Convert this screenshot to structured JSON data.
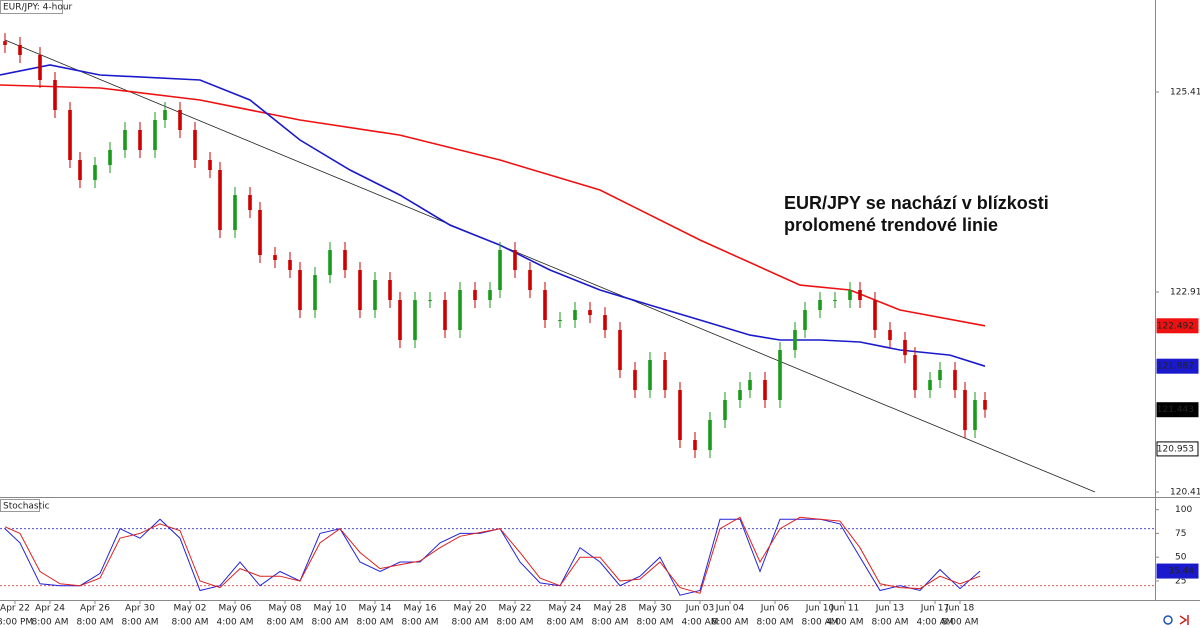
{
  "chart_data": [
    {
      "type": "candlestick",
      "title": "EUR/JPY: 4-hour",
      "annotation": [
        "EUR/JPY se nachází v blízkosti",
        "prolomené trendové linie"
      ],
      "x": [
        1,
        4,
        8,
        11,
        14,
        16,
        19,
        22,
        25,
        28,
        31,
        33,
        36,
        39,
        42,
        44,
        47,
        50,
        52,
        55,
        58,
        60,
        63,
        66,
        69,
        72,
        75,
        78,
        80,
        83,
        86,
        89,
        92,
        95,
        98,
        100,
        103,
        106,
        109,
        112,
        115,
        118,
        121,
        124,
        127,
        130,
        133,
        136,
        139,
        142,
        145,
        148,
        150,
        153,
        156,
        159,
        161,
        164,
        167,
        170,
        172,
        175,
        178,
        181,
        183,
        186,
        188,
        191,
        193,
        195,
        197
      ],
      "open": [
        126.05,
        126.002,
        125.877,
        125.564,
        125.189,
        124.564,
        124.314,
        124.501,
        124.689,
        124.939,
        124.689,
        125.064,
        125.189,
        124.939,
        124.564,
        124.439,
        123.689,
        124.126,
        123.939,
        123.376,
        123.314,
        123.189,
        122.689,
        123.126,
        123.439,
        123.189,
        122.689,
        123.064,
        122.814,
        122.314,
        122.814,
        122.814,
        122.439,
        122.939,
        122.814,
        122.939,
        123.439,
        123.189,
        122.939,
        122.564,
        122.564,
        122.689,
        122.626,
        122.439,
        121.939,
        121.689,
        122.064,
        121.689,
        121.064,
        120.939,
        121.314,
        121.564,
        121.689,
        121.814,
        121.564,
        122.189,
        122.439,
        122.689,
        122.814,
        122.814,
        122.939,
        122.814,
        122.439,
        122.314,
        122.126,
        121.689,
        121.814,
        121.939,
        121.689,
        121.189,
        121.564
      ],
      "high": [
        126.15,
        126.102,
        125.977,
        125.664,
        125.289,
        124.664,
        124.601,
        124.789,
        125.039,
        125.039,
        125.164,
        125.289,
        125.289,
        125.039,
        124.664,
        124.539,
        124.226,
        124.226,
        124.039,
        123.476,
        123.414,
        123.289,
        123.226,
        123.539,
        123.539,
        123.289,
        123.164,
        123.164,
        122.914,
        122.914,
        122.914,
        122.914,
        123.039,
        123.039,
        123.039,
        123.539,
        123.539,
        123.289,
        123.039,
        122.664,
        122.789,
        122.789,
        122.726,
        122.539,
        122.039,
        122.164,
        122.164,
        121.789,
        121.164,
        121.414,
        121.664,
        121.789,
        121.914,
        121.914,
        122.289,
        122.539,
        122.789,
        122.914,
        122.914,
        123.039,
        123.039,
        122.914,
        122.539,
        122.414,
        122.226,
        121.914,
        122.039,
        122.039,
        121.789,
        121.664,
        121.664
      ],
      "low": [
        125.902,
        125.777,
        125.464,
        125.089,
        124.464,
        124.214,
        124.214,
        124.401,
        124.589,
        124.589,
        124.589,
        124.964,
        124.839,
        124.464,
        124.339,
        123.589,
        123.589,
        123.839,
        123.276,
        123.214,
        123.089,
        122.589,
        122.589,
        123.026,
        123.089,
        122.589,
        122.589,
        122.714,
        122.214,
        122.214,
        122.714,
        122.339,
        122.339,
        122.714,
        122.714,
        122.839,
        123.089,
        122.839,
        122.464,
        122.464,
        122.464,
        122.526,
        122.339,
        121.839,
        121.589,
        121.589,
        121.589,
        120.964,
        120.839,
        120.839,
        121.214,
        121.464,
        121.589,
        121.464,
        121.464,
        122.089,
        122.339,
        122.589,
        122.714,
        122.714,
        122.714,
        122.339,
        122.214,
        122.026,
        121.589,
        121.589,
        121.714,
        121.589,
        121.089,
        121.089,
        121.343
      ],
      "close": [
        126.002,
        125.877,
        125.564,
        125.189,
        124.564,
        124.314,
        124.501,
        124.689,
        124.939,
        124.689,
        125.064,
        125.189,
        124.939,
        124.564,
        124.439,
        123.689,
        124.126,
        123.939,
        123.376,
        123.314,
        123.189,
        122.689,
        123.126,
        123.439,
        123.189,
        122.689,
        123.064,
        122.814,
        122.314,
        122.814,
        122.814,
        122.439,
        122.939,
        122.814,
        122.939,
        123.439,
        123.189,
        122.939,
        122.564,
        122.564,
        122.689,
        122.626,
        122.439,
        121.939,
        121.689,
        122.064,
        121.689,
        121.064,
        120.939,
        121.314,
        121.564,
        121.689,
        121.814,
        121.564,
        122.189,
        122.439,
        122.689,
        122.814,
        122.814,
        122.939,
        122.814,
        122.439,
        122.314,
        122.126,
        121.689,
        121.814,
        121.939,
        121.689,
        121.189,
        121.564,
        121.443
      ],
      "up_color": "#1a9a1a",
      "down_color": "#cc0000",
      "xlim": [
        0,
        231
      ],
      "ylim": [
        120.377,
        126.564
      ],
      "yticks": [
        125.414,
        122.914,
        120.414
      ],
      "series": [
        {
          "color": "#ee1111",
          "x": [
            0,
            20,
            40,
            60,
            80,
            100,
            120,
            140,
            160,
            170,
            180,
            197
          ],
          "values": [
            125.501,
            125.464,
            125.314,
            125.064,
            124.876,
            124.564,
            124.189,
            123.564,
            123.001,
            122.939,
            122.689,
            122.492
          ]
        },
        {
          "color": "#1a1acc",
          "x": [
            0,
            10,
            20,
            40,
            50,
            60,
            70,
            80,
            90,
            100,
            110,
            120,
            130,
            140,
            150,
            156,
            164,
            172,
            180,
            190,
            197
          ],
          "values": [
            125.626,
            125.751,
            125.626,
            125.564,
            125.314,
            124.814,
            124.439,
            124.126,
            123.751,
            123.501,
            123.189,
            122.939,
            122.751,
            122.564,
            122.376,
            122.314,
            122.314,
            122.289,
            122.189,
            122.126,
            121.987
          ]
        }
      ],
      "trendline": {
        "color": "#222222",
        "x": [
          1,
          219
        ],
        "values": [
          126.064,
          120.414
        ]
      },
      "markers": [
        {
          "value": 122.492,
          "color": "#ee1111"
        },
        {
          "value": 121.987,
          "color": "#1a1acc"
        },
        {
          "value": 121.443,
          "color": "#000000"
        },
        {
          "value": 120.953,
          "color": "#ffffff"
        }
      ]
    },
    {
      "type": "line",
      "title": "Stochastic",
      "x": [
        1,
        4,
        8,
        12,
        16,
        20,
        24,
        28,
        32,
        36,
        40,
        44,
        48,
        52,
        56,
        60,
        64,
        68,
        72,
        76,
        80,
        84,
        88,
        92,
        96,
        100,
        104,
        108,
        112,
        116,
        120,
        124,
        128,
        132,
        136,
        140,
        144,
        148,
        152,
        156,
        160,
        164,
        168,
        172,
        176,
        180,
        184,
        188,
        192,
        196
      ],
      "series": [
        {
          "color": "#2222dd",
          "values": [
            80,
            65,
            22,
            20,
            20,
            33,
            80,
            70,
            90,
            70,
            15,
            20,
            45,
            20,
            35,
            25,
            75,
            80,
            45,
            35,
            45,
            45,
            65,
            75,
            75,
            80,
            45,
            23,
            20,
            60,
            45,
            20,
            30,
            50,
            10,
            15,
            90,
            90,
            35,
            90,
            90,
            90,
            85,
            50,
            15,
            20,
            15,
            37,
            17,
            35.44
          ]
        },
        {
          "color": "#dd2222",
          "values": [
            82,
            75,
            35,
            22,
            20,
            28,
            70,
            75,
            85,
            78,
            25,
            18,
            38,
            30,
            30,
            25,
            65,
            80,
            55,
            38,
            42,
            46,
            60,
            72,
            76,
            80,
            55,
            28,
            20,
            50,
            50,
            25,
            27,
            45,
            18,
            12,
            80,
            92,
            45,
            80,
            92,
            90,
            88,
            60,
            22,
            18,
            17,
            30,
            22,
            30
          ]
        }
      ],
      "levels": [
        {
          "value": 80,
          "color": "#3333cc"
        },
        {
          "value": 20,
          "color": "#cc2222"
        }
      ],
      "markers": [
        {
          "value": 35.44,
          "color": "#1a1acc"
        }
      ],
      "xlim": [
        0,
        231
      ],
      "ylim": [
        5,
        107
      ],
      "yticks": [
        100,
        75,
        50,
        25
      ],
      "xticks": [
        {
          "value": 3,
          "label": "Apr 22"
        },
        {
          "value": 10,
          "label": "Apr 24"
        },
        {
          "value": 19,
          "label": "Apr 26"
        },
        {
          "value": 28,
          "label": "Apr 30"
        },
        {
          "value": 38,
          "label": "May 02"
        },
        {
          "value": 47,
          "label": "May 06"
        },
        {
          "value": 57,
          "label": "May 08"
        },
        {
          "value": 66,
          "label": "May 10"
        },
        {
          "value": 75,
          "label": "May 14"
        },
        {
          "value": 84,
          "label": "May 16"
        },
        {
          "value": 94,
          "label": "May 20"
        },
        {
          "value": 103,
          "label": "May 22"
        },
        {
          "value": 113,
          "label": "May 24"
        },
        {
          "value": 122,
          "label": "May 28"
        },
        {
          "value": 131,
          "label": "May 30"
        },
        {
          "value": 140,
          "label": "Jun 03"
        },
        {
          "value": 146,
          "label": "Jun 04"
        },
        {
          "value": 155,
          "label": "Jun 06"
        },
        {
          "value": 164,
          "label": "Jun 10"
        },
        {
          "value": 169,
          "label": "Jun 11"
        },
        {
          "value": 178,
          "label": "Jun 13"
        },
        {
          "value": 187,
          "label": "Jun 17"
        },
        {
          "value": 192,
          "label": "Jun 18"
        }
      ],
      "xtick_times": [
        "8:00 PM",
        "8:00 AM",
        "8:00 AM",
        "8:00 AM",
        "8:00 AM",
        "4:00 AM",
        "8:00 AM",
        "8:00 AM",
        "8:00 AM",
        "8:00 AM",
        "8:00 AM",
        "8:00 AM",
        "8:00 AM",
        "8:00 AM",
        "8:00 AM",
        "4:00 AM",
        "8:00 AM",
        "8:00 AM",
        "8:00 AM",
        "4:00 AM",
        "8:00 AM",
        "4:00 AM",
        "8:00 AM"
      ]
    }
  ]
}
